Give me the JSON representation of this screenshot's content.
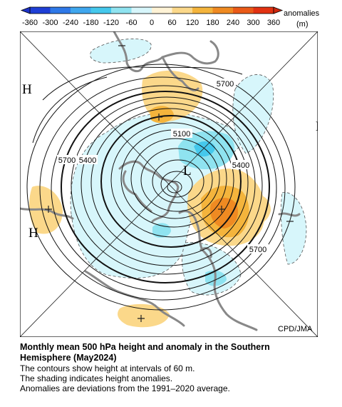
{
  "colorbar": {
    "ticks": [
      "-360",
      "-300",
      "-240",
      "-180",
      "-120",
      "-60",
      "0",
      "60",
      "120",
      "180",
      "240",
      "300",
      "360"
    ],
    "label_line1": "anomalies",
    "label_line2": "(m)",
    "colors": [
      "#1f3fd6",
      "#2f79e8",
      "#3fa7ee",
      "#45c8ec",
      "#8fe3f0",
      "#d7f6fb",
      "#fff3d6",
      "#fbd88a",
      "#f4b43c",
      "#ef8a22",
      "#ea5a18",
      "#e23212"
    ]
  },
  "map": {
    "pressure_labels": [
      "H",
      "H",
      "H",
      "L"
    ],
    "contour_labels": [
      "5700",
      "5100",
      "5700",
      "5400",
      "5400",
      "5700"
    ],
    "credit": "CPD/JMA"
  },
  "caption": {
    "title_line1": "Monthly mean 500 hPa height and anomaly in the Southern",
    "title_line2": "Hemisphere (May2024)",
    "line1": "The contours show height at intervals of 60 m.",
    "line2": "The shading indicates height anomalies.",
    "line3": "Anomalies are deviations from the 1991–2020 average."
  }
}
